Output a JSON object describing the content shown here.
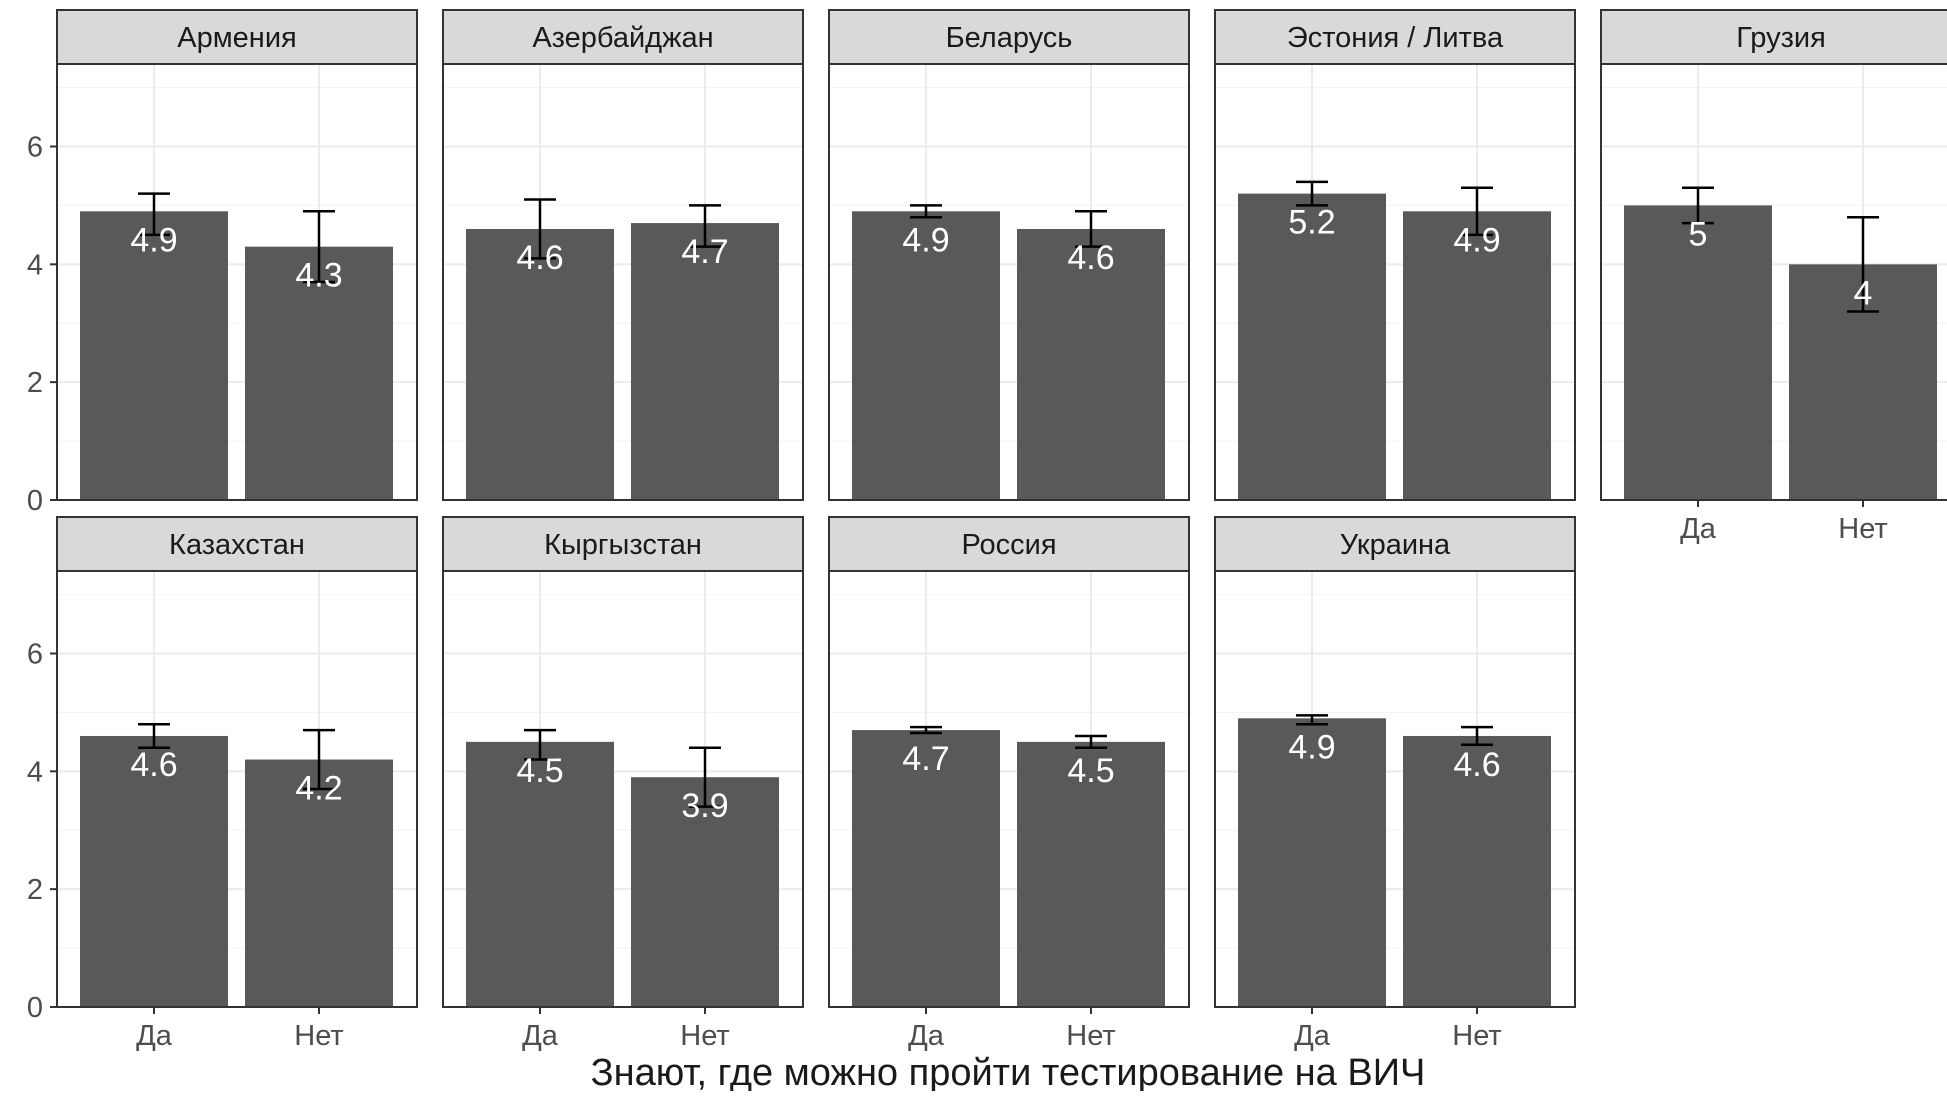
{
  "chart_data": {
    "type": "bar",
    "xlabel": "Знают, где можно пройти тестирование на ВИЧ",
    "ylabel": "",
    "ylim": [
      0,
      7.4
    ],
    "yticks": [
      0,
      2,
      4,
      6
    ],
    "categories": [
      "Да",
      "Нет"
    ],
    "grid": true,
    "bar_color": "#595959",
    "panels": [
      {
        "name": "Армения",
        "values": [
          4.9,
          4.3
        ],
        "labels": [
          "4.9",
          "4.3"
        ],
        "err_low": [
          4.5,
          3.7
        ],
        "err_high": [
          5.2,
          4.9
        ]
      },
      {
        "name": "Азербайджан",
        "values": [
          4.6,
          4.7
        ],
        "labels": [
          "4.6",
          "4.7"
        ],
        "err_low": [
          4.1,
          4.3
        ],
        "err_high": [
          5.1,
          5.0
        ]
      },
      {
        "name": "Беларусь",
        "values": [
          4.9,
          4.6
        ],
        "labels": [
          "4.9",
          "4.6"
        ],
        "err_low": [
          4.8,
          4.3
        ],
        "err_high": [
          5.0,
          4.9
        ]
      },
      {
        "name": "Эстония / Литва",
        "values": [
          5.2,
          4.9
        ],
        "labels": [
          "5.2",
          "4.9"
        ],
        "err_low": [
          5.0,
          4.5
        ],
        "err_high": [
          5.4,
          5.3
        ]
      },
      {
        "name": "Грузия",
        "values": [
          5.0,
          4.0
        ],
        "labels": [
          "5",
          "4"
        ],
        "err_low": [
          4.7,
          3.2
        ],
        "err_high": [
          5.3,
          4.8
        ]
      },
      {
        "name": "Казахстан",
        "values": [
          4.6,
          4.2
        ],
        "labels": [
          "4.6",
          "4.2"
        ],
        "err_low": [
          4.4,
          3.7
        ],
        "err_high": [
          4.8,
          4.7
        ]
      },
      {
        "name": "Кыргызстан",
        "values": [
          4.5,
          3.9
        ],
        "labels": [
          "4.5",
          "3.9"
        ],
        "err_low": [
          4.2,
          3.4
        ],
        "err_high": [
          4.7,
          4.4
        ]
      },
      {
        "name": "Россия",
        "values": [
          4.7,
          4.5
        ],
        "labels": [
          "4.7",
          "4.5"
        ],
        "err_low": [
          4.65,
          4.4
        ],
        "err_high": [
          4.75,
          4.6
        ]
      },
      {
        "name": "Украина",
        "values": [
          4.9,
          4.6
        ],
        "labels": [
          "4.9",
          "4.6"
        ],
        "err_low": [
          4.8,
          4.45
        ],
        "err_high": [
          4.95,
          4.75
        ]
      }
    ]
  }
}
